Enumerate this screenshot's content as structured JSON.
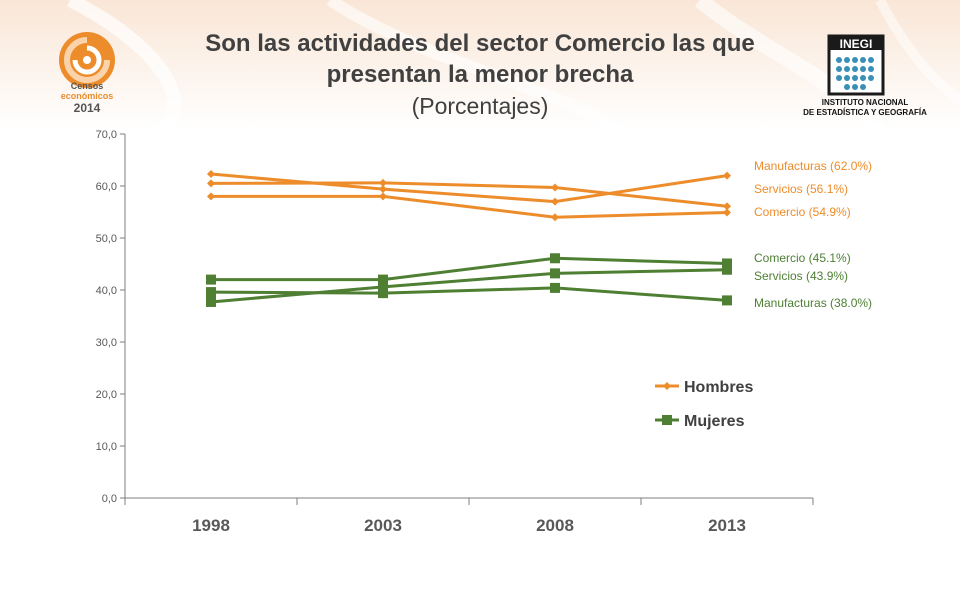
{
  "header": {
    "title_line1": "Son las actividades del sector Comercio las que",
    "title_line2": "presentan la menor brecha",
    "title_line3": "(Porcentajes)"
  },
  "logos": {
    "censos": {
      "word1": "Censos",
      "word2": "económicos",
      "year": "2014"
    },
    "inegi": {
      "name": "INEGI",
      "line1": "INSTITUTO NACIONAL",
      "line2": "DE ESTADÍSTICA Y GEOGRAFÍA"
    }
  },
  "colors": {
    "hombres": "#ED8C2B",
    "mujeres": "#4E7F33",
    "axis": "#7f7f7f",
    "tick_text": "#595959"
  },
  "chart_data": {
    "type": "line",
    "categories": [
      "1998",
      "2003",
      "2008",
      "2013"
    ],
    "ylim": [
      0,
      70
    ],
    "yticks": [
      "0,0",
      "10,0",
      "20,0",
      "30,0",
      "40,0",
      "50,0",
      "60,0",
      "70,0"
    ],
    "grid": false,
    "legend": {
      "position": "right",
      "entries": [
        "Hombres",
        "Mujeres"
      ]
    },
    "series": [
      {
        "group": "Hombres",
        "name": "Manufacturas (62.0%)",
        "values": [
          62.3,
          59.4,
          57.0,
          62.0
        ]
      },
      {
        "group": "Hombres",
        "name": "Servicios (56.1%)",
        "values": [
          60.5,
          60.6,
          59.7,
          56.1
        ]
      },
      {
        "group": "Hombres",
        "name": "Comercio (54.9%)",
        "values": [
          58.0,
          58.0,
          54.0,
          54.9
        ]
      },
      {
        "group": "Mujeres",
        "name": "Comercio (45.1%)",
        "values": [
          42.0,
          42.0,
          46.1,
          45.1
        ]
      },
      {
        "group": "Mujeres",
        "name": "Servicios (43.9%)",
        "values": [
          37.7,
          40.6,
          43.2,
          43.9
        ]
      },
      {
        "group": "Mujeres",
        "name": "Manufacturas (38.0%)",
        "values": [
          39.6,
          39.4,
          40.4,
          38.0
        ]
      }
    ]
  }
}
